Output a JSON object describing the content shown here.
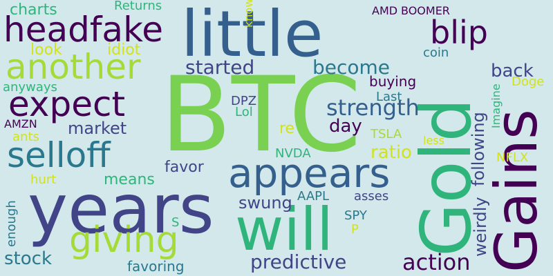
{
  "background": "#d2e8ea",
  "words": [
    {
      "text": "BTC",
      "color": "#7ad151"
    },
    {
      "text": "years",
      "color": "#414487"
    },
    {
      "text": "little",
      "color": "#355f8d"
    },
    {
      "text": "Gold",
      "color": "#2fb47c"
    },
    {
      "text": "Gains",
      "color": "#440154"
    },
    {
      "text": "will",
      "color": "#2fb47c"
    },
    {
      "text": "appears",
      "color": "#355f8d"
    },
    {
      "text": "headfake",
      "color": "#440154"
    },
    {
      "text": "another",
      "color": "#a5db36"
    },
    {
      "text": "expect",
      "color": "#440154"
    },
    {
      "text": "giving",
      "color": "#a5db36"
    },
    {
      "text": "selloff",
      "color": "#2a788e"
    },
    {
      "text": "blip",
      "color": "#440154"
    },
    {
      "text": "strength",
      "color": "#355f8d"
    },
    {
      "text": "action",
      "color": "#440154"
    },
    {
      "text": "predictive",
      "color": "#414487"
    },
    {
      "text": "become",
      "color": "#2a788e"
    },
    {
      "text": "started",
      "color": "#414487"
    },
    {
      "text": "back",
      "color": "#414487"
    },
    {
      "text": "day",
      "color": "#440154"
    },
    {
      "text": "market",
      "color": "#414487"
    },
    {
      "text": "ratio",
      "color": "#d2e21b"
    },
    {
      "text": "favor",
      "color": "#414487"
    },
    {
      "text": "swung",
      "color": "#414487"
    },
    {
      "text": "means",
      "color": "#2fb47c"
    },
    {
      "text": "stock",
      "color": "#2a788e"
    },
    {
      "text": "charts",
      "color": "#2fb47c"
    },
    {
      "text": "look",
      "color": "#d2e21b"
    },
    {
      "text": "idiot",
      "color": "#d2e21b"
    },
    {
      "text": "following",
      "color": "#414487"
    },
    {
      "text": "weirdly",
      "color": "#414487"
    },
    {
      "text": "buying",
      "color": "#440154"
    },
    {
      "text": "favoring",
      "color": "#2a788e"
    },
    {
      "text": "Returns",
      "color": "#2fb47c"
    },
    {
      "text": "AMD",
      "color": "#440154"
    },
    {
      "text": "BOOMER",
      "color": "#440154"
    },
    {
      "text": "coin",
      "color": "#2a788e"
    },
    {
      "text": "Doge",
      "color": "#d2e21b"
    },
    {
      "text": "anyways",
      "color": "#2fb47c"
    },
    {
      "text": "know",
      "color": "#d2e21b"
    },
    {
      "text": "Last",
      "color": "#2a788e"
    },
    {
      "text": "DPZ",
      "color": "#414487"
    },
    {
      "text": "Lol",
      "color": "#2fb47c"
    },
    {
      "text": "re",
      "color": "#d2e21b"
    },
    {
      "text": "AMZN",
      "color": "#440154"
    },
    {
      "text": "ants",
      "color": "#d2e21b"
    },
    {
      "text": "TSLA",
      "color": "#a5db36"
    },
    {
      "text": "less",
      "color": "#d2e21b"
    },
    {
      "text": "Imagine",
      "color": "#2fb47c"
    },
    {
      "text": "NVDA",
      "color": "#2fb47c"
    },
    {
      "text": "NFLX",
      "color": "#d2e21b"
    },
    {
      "text": "hurt",
      "color": "#d2e21b"
    },
    {
      "text": "enough",
      "color": "#2a788e"
    },
    {
      "text": "AAPL",
      "color": "#2a788e"
    },
    {
      "text": "asses",
      "color": "#414487"
    },
    {
      "text": "SPY",
      "color": "#2a788e"
    },
    {
      "text": "S",
      "color": "#2fb47c"
    },
    {
      "text": "P",
      "color": "#d2e21b"
    }
  ]
}
